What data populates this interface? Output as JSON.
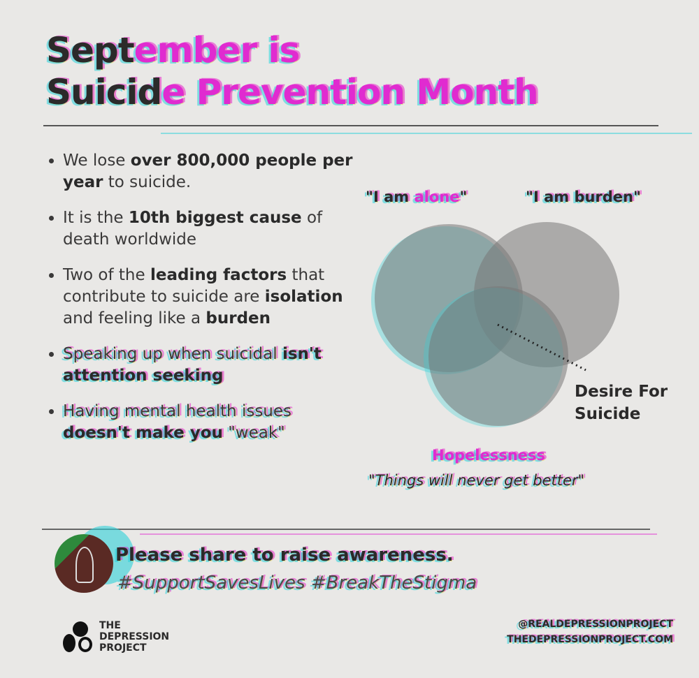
{
  "title": {
    "line1_a": "Sept",
    "line1_b": "ember is",
    "line2_a": "Suicid",
    "line2_b": "e Prevention Month"
  },
  "bullets": [
    {
      "parts": [
        "We lose ",
        "over 800,000 people per year",
        " to suicide."
      ]
    },
    {
      "parts": [
        "It is the ",
        "10th biggest cause",
        " of death worldwide"
      ]
    },
    {
      "parts": [
        "Two of the ",
        "leading factors",
        " that contribute to suicide are ",
        "isolation",
        " and feeling like a ",
        "burden"
      ]
    },
    {
      "parts": [
        "Speaking up when suicidal ",
        "isn't attention seeking"
      ]
    },
    {
      "parts": [
        "Having mental health issues ",
        "doesn't make you",
        " \"weak\""
      ]
    }
  ],
  "venn": {
    "alone": {
      "pre": "\"I am ",
      "bold": "alone",
      "post": "\""
    },
    "burden": {
      "pre": "\"I am ",
      "bold": "burden",
      "post": "\""
    },
    "hopelessness": "Hopelessness",
    "hopelessness_quote": "\"Things will never get better\"",
    "center_label_1": "Desire For",
    "center_label_2": "Suicide",
    "circle_color": "#8a8888"
  },
  "footer": {
    "share": "Please share to raise awareness.",
    "hashtags": "#SupportSavesLives #BreakTheStigma",
    "logo_line1": "THE",
    "logo_line2": "DEPRESSION",
    "logo_line3": "PROJECT",
    "handle": "@REALDEPRESSIONPROJECT",
    "website": "THEDEPRESSIONPROJECT.COM"
  },
  "colors": {
    "magenta": "#e02bd0",
    "cyan": "#2fd0d8",
    "yellow": "#e6dc3a",
    "background": "#e9e8e6"
  }
}
